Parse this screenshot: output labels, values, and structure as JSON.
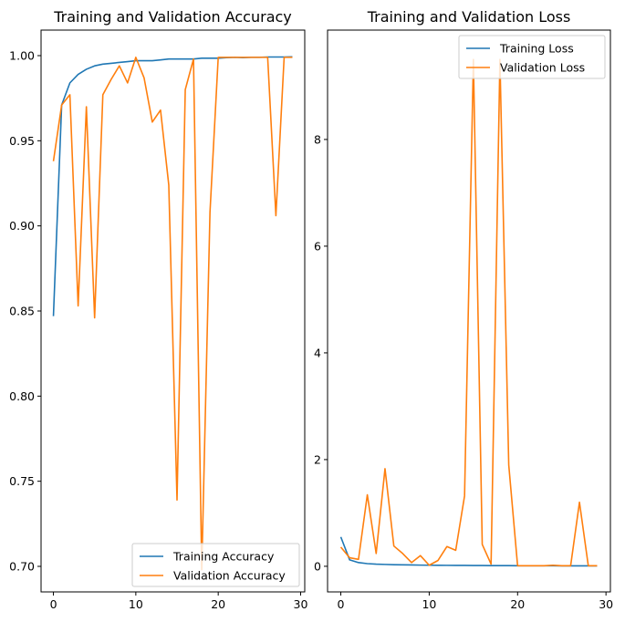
{
  "chart_data": [
    {
      "type": "line",
      "title": "Training and Validation Accuracy",
      "xlabel": "",
      "ylabel": "",
      "xlim": [
        -1.5,
        30.5
      ],
      "ylim": [
        0.685,
        1.015
      ],
      "xticks": [
        0,
        10,
        20,
        30
      ],
      "yticks": [
        0.7,
        0.75,
        0.8,
        0.85,
        0.9,
        0.95,
        1.0
      ],
      "ytick_labels": [
        "0.70",
        "0.75",
        "0.80",
        "0.85",
        "0.90",
        "0.95",
        "1.00"
      ],
      "grid": false,
      "legend_position": "lower-right",
      "x": [
        0,
        1,
        2,
        3,
        4,
        5,
        6,
        7,
        8,
        9,
        10,
        11,
        12,
        13,
        14,
        15,
        16,
        17,
        18,
        19,
        20,
        21,
        22,
        23,
        24,
        25,
        26,
        27,
        28,
        29
      ],
      "series": [
        {
          "name": "Training Accuracy",
          "color": "#1f77b4",
          "values": [
            0.847,
            0.971,
            0.984,
            0.989,
            0.992,
            0.994,
            0.995,
            0.9955,
            0.996,
            0.9965,
            0.997,
            0.997,
            0.997,
            0.9975,
            0.998,
            0.998,
            0.998,
            0.998,
            0.9985,
            0.9985,
            0.9985,
            0.9988,
            0.999,
            0.9988,
            0.999,
            0.999,
            0.9992,
            0.9992,
            0.9992,
            0.9993
          ]
        },
        {
          "name": "Validation Accuracy",
          "color": "#ff7f0e",
          "values": [
            0.938,
            0.971,
            0.977,
            0.853,
            0.97,
            0.846,
            0.977,
            0.986,
            0.994,
            0.984,
            0.999,
            0.987,
            0.961,
            0.968,
            0.924,
            0.739,
            0.98,
            0.998,
            0.698,
            0.908,
            0.999,
            0.999,
            0.999,
            0.999,
            0.999,
            0.999,
            0.999,
            0.906,
            0.999,
            0.999
          ]
        }
      ]
    },
    {
      "type": "line",
      "title": "Training and Validation Loss",
      "xlabel": "",
      "ylabel": "",
      "xlim": [
        -1.5,
        30.5
      ],
      "ylim": [
        -0.48,
        10.05
      ],
      "xticks": [
        0,
        10,
        20,
        30
      ],
      "yticks": [
        0,
        2,
        4,
        6,
        8
      ],
      "ytick_labels": [
        "0",
        "2",
        "4",
        "6",
        "8"
      ],
      "grid": false,
      "legend_position": "upper-right",
      "x": [
        0,
        1,
        2,
        3,
        4,
        5,
        6,
        7,
        8,
        9,
        10,
        11,
        12,
        13,
        14,
        15,
        16,
        17,
        18,
        19,
        20,
        21,
        22,
        23,
        24,
        25,
        26,
        27,
        28,
        29
      ],
      "series": [
        {
          "name": "Training Loss",
          "color": "#1f77b4",
          "values": [
            0.55,
            0.12,
            0.07,
            0.05,
            0.04,
            0.035,
            0.03,
            0.027,
            0.025,
            0.022,
            0.02,
            0.019,
            0.018,
            0.017,
            0.016,
            0.015,
            0.014,
            0.013,
            0.012,
            0.012,
            0.011,
            0.011,
            0.01,
            0.01,
            0.01,
            0.009,
            0.009,
            0.009,
            0.008,
            0.008
          ]
        },
        {
          "name": "Validation Loss",
          "color": "#ff7f0e",
          "values": [
            0.36,
            0.16,
            0.13,
            1.34,
            0.24,
            1.83,
            0.38,
            0.24,
            0.07,
            0.2,
            0.02,
            0.11,
            0.37,
            0.3,
            1.32,
            9.5,
            0.41,
            0.04,
            9.5,
            1.9,
            0.01,
            0.01,
            0.01,
            0.01,
            0.02,
            0.01,
            0.01,
            1.2,
            0.01,
            0.01
          ]
        }
      ]
    }
  ]
}
